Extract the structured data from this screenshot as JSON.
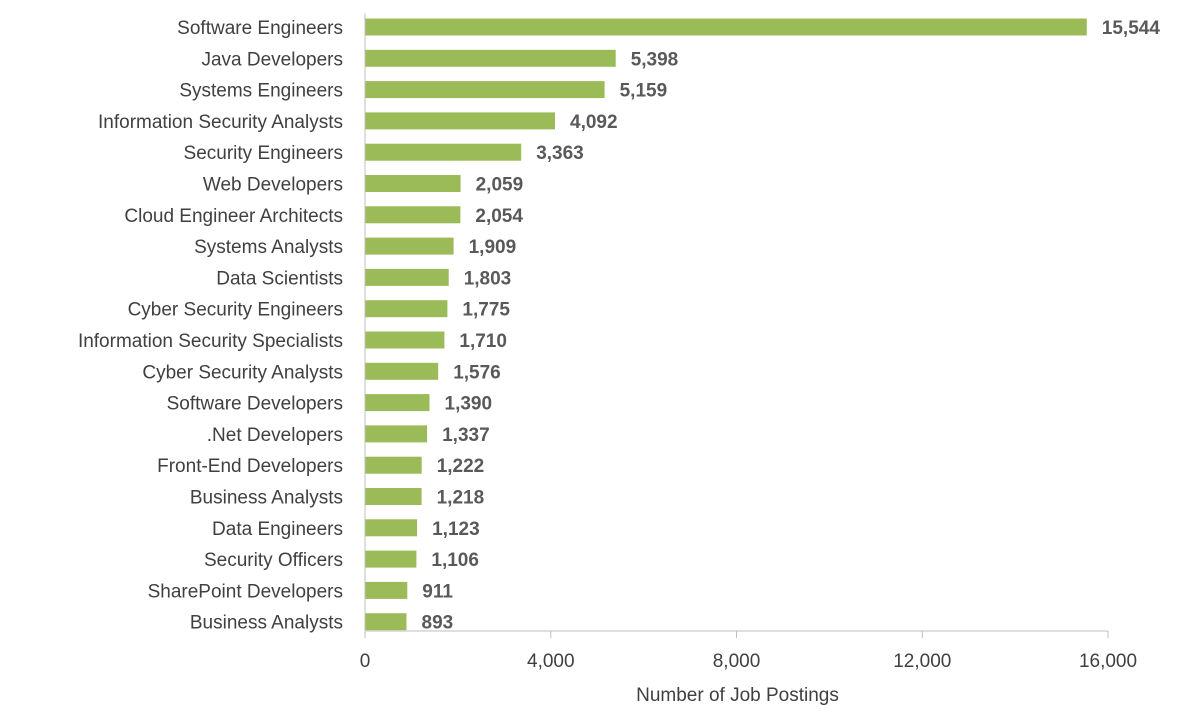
{
  "chart_data": {
    "type": "bar",
    "orientation": "horizontal",
    "categories": [
      "Software Engineers",
      "Java Developers",
      "Systems Engineers",
      "Information Security Analysts",
      "Security Engineers",
      "Web Developers",
      "Cloud Engineer Architects",
      "Systems Analysts",
      "Data Scientists",
      "Cyber Security Engineers",
      "Information Security Specialists",
      "Cyber Security Analysts",
      "Software Developers",
      ".Net Developers",
      "Front-End Developers",
      "Business Analysts",
      "Data Engineers",
      "Security Officers",
      "SharePoint Developers",
      "Business Analysts"
    ],
    "values": [
      15544,
      5398,
      5159,
      4092,
      3363,
      2059,
      2054,
      1909,
      1803,
      1775,
      1710,
      1576,
      1390,
      1337,
      1222,
      1218,
      1123,
      1106,
      911,
      893
    ],
    "value_labels": [
      "15,544",
      "5,398",
      "5,159",
      "4,092",
      "3,363",
      "2,059",
      "2,054",
      "1,909",
      "1,803",
      "1,775",
      "1,710",
      "1,576",
      "1,390",
      "1,337",
      "1,222",
      "1,218",
      "1,123",
      "1,106",
      "911",
      "893"
    ],
    "xlabel": "Number of Job Postings",
    "ylabel": "",
    "xlim": [
      0,
      16000
    ],
    "xticks": [
      0,
      4000,
      8000,
      12000,
      16000
    ],
    "xtick_labels": [
      "0",
      "4,000",
      "8,000",
      "12,000",
      "16,000"
    ],
    "grid": false,
    "legend": "none",
    "bar_color": "#9BBB59",
    "axis_color": "#BFBFBF"
  }
}
